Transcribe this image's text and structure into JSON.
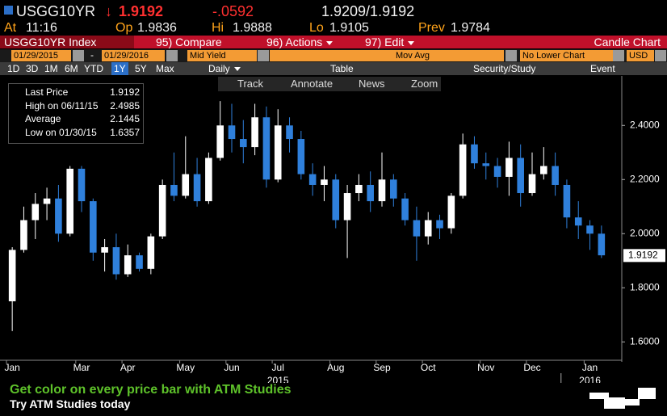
{
  "header": {
    "ticker": "USGG10YR",
    "arrow": "↓",
    "last": "1.9192",
    "change": "-.0592",
    "bid_ask": "1.9209/1.9192",
    "at_label": "At",
    "time": "11:16",
    "open_label": "Op",
    "open": "1.9836",
    "high_label": "Hi",
    "high": "1.9888",
    "low_label": "Lo",
    "low": "1.9105",
    "prev_label": "Prev",
    "prev": "1.9784"
  },
  "menu": {
    "security": "USGG10YR Index",
    "compare": "95) Compare",
    "actions": "96) Actions",
    "edit": "97) Edit",
    "chart_type": "Candle Chart"
  },
  "fields": {
    "start": "01/29/2015",
    "separator": "-",
    "end": "01/29/2016",
    "field": "Mid Yield",
    "study": "Mov Avg",
    "lower": "No Lower Chart",
    "currency": "USD"
  },
  "periods": [
    "1D",
    "3D",
    "1M",
    "6M",
    "YTD",
    "1Y",
    "5Y",
    "Max"
  ],
  "toolbar": {
    "frequency": "Daily",
    "table": "Table",
    "security_study": "Security/Study",
    "event": "Event"
  },
  "tools": [
    "Track",
    "Annotate",
    "News",
    "Zoom"
  ],
  "chart_data": {
    "type": "candlestick",
    "legend": [
      {
        "label": "Last Price",
        "value": 1.9192
      },
      {
        "label": "High on 06/11/15",
        "value": 2.4985
      },
      {
        "label": "Average",
        "value": 2.1445
      },
      {
        "label": "Low on 01/30/15",
        "value": 1.6357
      }
    ],
    "categories": [
      "Jan",
      null,
      null,
      null,
      null,
      null,
      "Mar",
      null,
      null,
      null,
      "Apr",
      null,
      null,
      null,
      null,
      "May",
      null,
      null,
      null,
      "Jun",
      null,
      null,
      null,
      "Jul",
      null,
      null,
      null,
      null,
      "Aug",
      null,
      null,
      null,
      "Sep",
      null,
      null,
      null,
      "Oct",
      null,
      null,
      null,
      null,
      "Nov",
      null,
      null,
      null,
      "Dec",
      null,
      null,
      null,
      null,
      "Jan",
      null
    ],
    "years": [
      "2015",
      "2016"
    ],
    "open": [
      1.75,
      1.94,
      2.05,
      2.11,
      2.13,
      2.0,
      2.24,
      2.12,
      1.93,
      1.95,
      1.85,
      1.92,
      1.87,
      1.99,
      2.18,
      2.14,
      2.22,
      2.12,
      2.28,
      2.4,
      2.35,
      2.32,
      2.43,
      2.2,
      2.4,
      2.35,
      2.22,
      2.18,
      2.2,
      2.05,
      2.15,
      2.18,
      2.12,
      2.2,
      2.13,
      2.05,
      1.99,
      2.05,
      2.02,
      2.14,
      2.33,
      2.26,
      2.25,
      2.21,
      2.28,
      2.15,
      2.22,
      2.25,
      2.18,
      2.06,
      2.03,
      2.0
    ],
    "high": [
      1.95,
      2.1,
      2.15,
      2.17,
      2.18,
      2.25,
      2.25,
      2.13,
      1.98,
      2.0,
      1.96,
      1.93,
      2.0,
      2.2,
      2.3,
      2.36,
      2.28,
      2.3,
      2.49,
      2.48,
      2.42,
      2.48,
      2.47,
      2.46,
      2.43,
      2.38,
      2.26,
      2.25,
      2.22,
      2.18,
      2.22,
      2.23,
      2.3,
      2.22,
      2.15,
      2.1,
      2.08,
      2.07,
      2.15,
      2.37,
      2.36,
      2.3,
      2.28,
      2.34,
      2.33,
      2.3,
      2.32,
      2.3,
      2.2,
      2.12,
      2.05,
      2.03
    ],
    "low": [
      1.64,
      1.93,
      1.98,
      2.05,
      1.97,
      1.99,
      2.08,
      1.9,
      1.86,
      1.83,
      1.84,
      1.86,
      1.85,
      1.98,
      2.12,
      2.13,
      2.1,
      2.11,
      2.27,
      2.3,
      2.26,
      2.29,
      2.17,
      2.19,
      2.3,
      2.2,
      2.14,
      2.12,
      2.02,
      1.91,
      2.12,
      2.08,
      2.1,
      2.1,
      2.03,
      1.9,
      1.96,
      1.98,
      2.0,
      2.13,
      2.24,
      2.2,
      2.17,
      2.14,
      2.1,
      2.14,
      2.2,
      2.14,
      2.02,
      1.98,
      1.94,
      1.91
    ],
    "close": [
      1.94,
      2.05,
      2.11,
      2.13,
      2.0,
      2.24,
      2.12,
      1.93,
      1.95,
      1.85,
      1.92,
      1.87,
      1.99,
      2.18,
      2.14,
      2.22,
      2.12,
      2.28,
      2.4,
      2.35,
      2.32,
      2.43,
      2.2,
      2.4,
      2.35,
      2.22,
      2.18,
      2.2,
      2.05,
      2.15,
      2.18,
      2.12,
      2.2,
      2.13,
      2.05,
      1.99,
      2.05,
      2.02,
      2.14,
      2.33,
      2.26,
      2.25,
      2.21,
      2.28,
      2.15,
      2.22,
      2.25,
      2.18,
      2.06,
      2.03,
      2.0,
      1.92
    ],
    "up_color": "#ffffff",
    "down_color": "#2f80dc",
    "ylim": [
      1.55,
      2.58
    ],
    "yticks": [
      {
        "value": 1.6,
        "label": "1.6000"
      },
      {
        "value": 1.8,
        "label": "1.8000"
      },
      {
        "value": 2.0,
        "label": "2.0000"
      },
      {
        "value": 2.2,
        "label": "2.2000"
      },
      {
        "value": 2.4,
        "label": "2.4000"
      }
    ],
    "last_value": 1.9192,
    "grid": false
  },
  "promo": {
    "headline": "Get color on every price bar with ATM Studies",
    "cta": "Try ATM Studies today"
  }
}
